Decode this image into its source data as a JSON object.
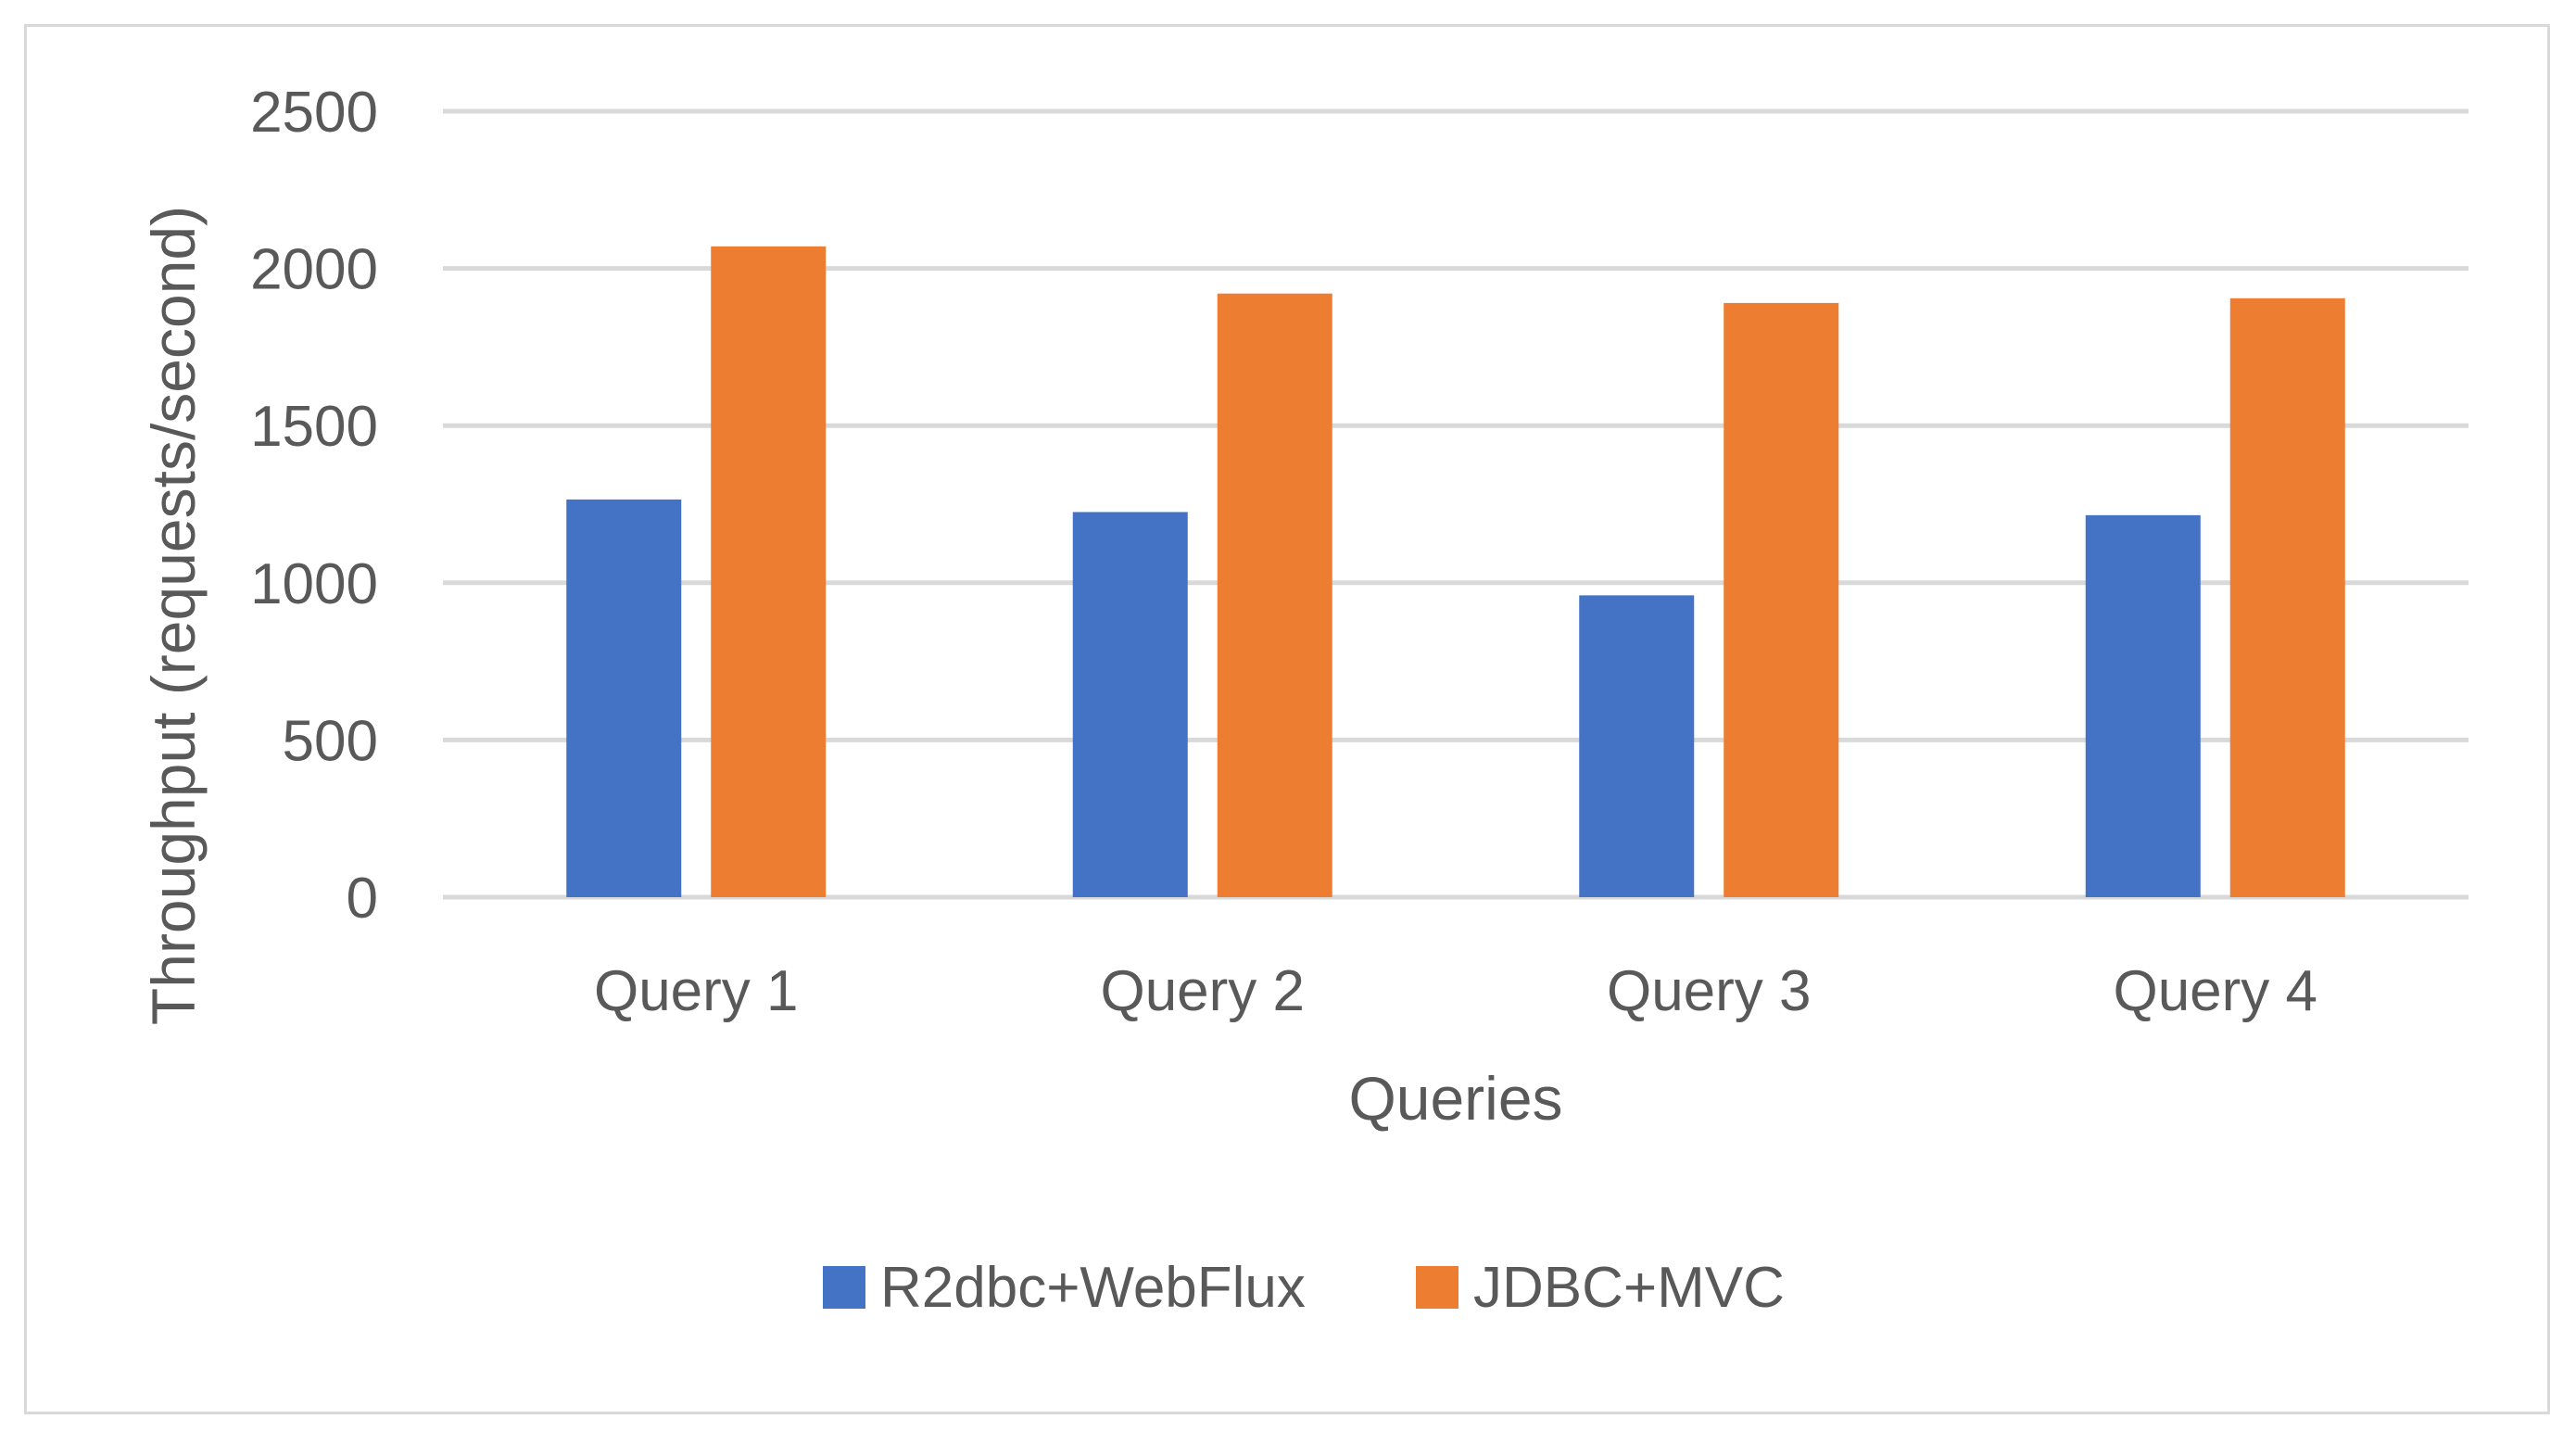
{
  "chart_data": {
    "type": "bar",
    "title": "",
    "xlabel": "Queries",
    "ylabel": "Throughput (requests/second)",
    "categories": [
      "Query 1",
      "Query 2",
      "Query 3",
      "Query 4"
    ],
    "series": [
      {
        "name": "R2dbc+WebFlux",
        "color": "#4472c4",
        "values": [
          1265,
          1225,
          960,
          1215
        ]
      },
      {
        "name": "JDBC+MVC",
        "color": "#ed7d31",
        "values": [
          2070,
          1920,
          1890,
          1905
        ]
      }
    ],
    "ylim": [
      0,
      2500
    ],
    "yticks": [
      "0",
      "500",
      "1000",
      "1500",
      "2000",
      "2500"
    ],
    "grid": true,
    "legend_position": "bottom"
  }
}
